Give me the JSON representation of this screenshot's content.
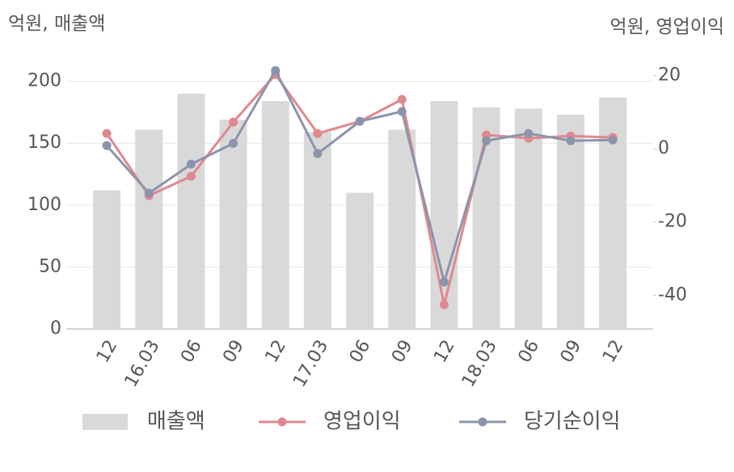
{
  "chart_data": {
    "type": "bar-line",
    "y_title": "억원, 매출액",
    "y2_title": "억원, 영업이익",
    "categories": [
      "12",
      "16.03",
      "06",
      "09",
      "12",
      "17.03",
      "06",
      "09",
      "12",
      "18.03",
      "06",
      "09",
      "12"
    ],
    "series": [
      {
        "name": "매출액",
        "type": "bar",
        "color": "#d9d9d9",
        "values": [
          112,
          161,
          190,
          169,
          184,
          159,
          110,
          161,
          184,
          179,
          178,
          173,
          187
        ]
      },
      {
        "name": "영업이익",
        "type": "line",
        "axis": "y2",
        "color": "#e0888f",
        "values": [
          4.2,
          -12.8,
          -7.5,
          7.3,
          20.3,
          4.2,
          7.5,
          13.5,
          -42.6,
          3.8,
          2.9,
          3.5,
          3.1
        ]
      },
      {
        "name": "당기순이익",
        "type": "line",
        "axis": "y2",
        "color": "#8c94ab",
        "values": [
          0.9,
          -12.1,
          -4.2,
          1.5,
          21.4,
          -1.3,
          7.5,
          10.2,
          -36.4,
          2.2,
          4.2,
          2.2,
          2.4
        ]
      }
    ],
    "ylim": [
      0,
      220
    ],
    "yticks": [
      0,
      50,
      100,
      150,
      200
    ],
    "y2lim": [
      -49.2,
      25.2
    ],
    "y2ticks": [
      -40,
      -20,
      0,
      20
    ],
    "grid": true,
    "legend": "bottom"
  }
}
